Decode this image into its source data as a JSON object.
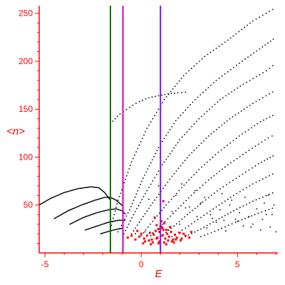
{
  "chart_data": {
    "type": "scatter",
    "title": "",
    "xlabel": "E",
    "ylabel": "<n>",
    "xlim": [
      -5.3,
      7.1
    ],
    "ylim": [
      0,
      255
    ],
    "grid": false,
    "legend": "none",
    "x_ticks": [
      -5,
      0,
      5
    ],
    "x_tick_labels": [
      "-5",
      "0",
      "5"
    ],
    "y_ticks": [
      50,
      100,
      150,
      200,
      250
    ],
    "y_tick_labels": [
      "50",
      "100",
      "150",
      "200",
      "250"
    ],
    "colors": {
      "axes": "#ff0000",
      "labels": "#ff0000",
      "points": "#000000",
      "highlight_points": "#ff0000",
      "line_green": "#007700",
      "line_magenta": "#cc00cc",
      "line_violet": "#7711ff"
    },
    "vertical_lines": [
      {
        "x": -1.6,
        "color": "#007700"
      },
      {
        "x": -0.95,
        "color": "#cc00cc"
      },
      {
        "x": 1.0,
        "color": "#7711ff"
      }
    ],
    "branches": [
      {
        "x": [
          -1.6,
          -1.2,
          -0.5,
          0.3,
          1.2,
          2.2,
          3.3,
          4.5,
          5.8,
          7.0
        ],
        "y": [
          25,
          55,
          95,
          130,
          160,
          185,
          205,
          222,
          242,
          256
        ]
      },
      {
        "x": [
          -1.2,
          -0.6,
          0.1,
          0.9,
          1.8,
          2.8,
          3.9,
          5.1,
          6.3,
          7.0
        ],
        "y": [
          22,
          45,
          78,
          110,
          138,
          160,
          180,
          198,
          215,
          225
        ]
      },
      {
        "x": [
          -0.9,
          -0.4,
          0.3,
          1.1,
          2.0,
          3.0,
          4.1,
          5.3,
          6.5,
          7.0
        ],
        "y": [
          20,
          40,
          65,
          92,
          118,
          140,
          160,
          176,
          190,
          198
        ]
      },
      {
        "x": [
          -0.5,
          0.1,
          0.8,
          1.6,
          2.5,
          3.5,
          4.6,
          5.8,
          7.0
        ],
        "y": [
          20,
          38,
          58,
          80,
          102,
          122,
          140,
          156,
          170
        ]
      },
      {
        "x": [
          0.0,
          0.6,
          1.3,
          2.1,
          3.0,
          4.0,
          5.1,
          6.2,
          7.0
        ],
        "y": [
          18,
          33,
          50,
          68,
          87,
          105,
          122,
          137,
          145
        ]
      },
      {
        "x": [
          0.5,
          1.1,
          1.8,
          2.6,
          3.5,
          4.5,
          5.6,
          6.6,
          7.0
        ],
        "y": [
          18,
          30,
          44,
          60,
          76,
          92,
          107,
          120,
          124
        ]
      },
      {
        "x": [
          1.0,
          1.7,
          2.4,
          3.2,
          4.1,
          5.1,
          6.1,
          7.0
        ],
        "y": [
          17,
          28,
          40,
          53,
          67,
          80,
          93,
          103
        ]
      },
      {
        "x": [
          1.6,
          2.3,
          3.1,
          3.9,
          4.8,
          5.8,
          7.0
        ],
        "y": [
          17,
          26,
          37,
          48,
          60,
          72,
          84
        ]
      },
      {
        "x": [
          2.3,
          3.1,
          3.9,
          4.8,
          5.8,
          7.0
        ],
        "y": [
          17,
          25,
          34,
          44,
          54,
          64
        ]
      },
      {
        "x": [
          3.1,
          4.0,
          4.9,
          5.9,
          7.0
        ],
        "y": [
          17,
          24,
          32,
          40,
          48
        ]
      }
    ],
    "left_curves": [
      {
        "x": [
          -5.3,
          -4.7,
          -4.0,
          -3.3,
          -2.6,
          -2.2,
          -1.9,
          -1.6
        ],
        "y": [
          50,
          57,
          63,
          67,
          69,
          68,
          63,
          55
        ]
      },
      {
        "x": [
          -4.5,
          -3.8,
          -3.1,
          -2.4,
          -1.9,
          -1.6,
          -1.3,
          -0.9
        ],
        "y": [
          36,
          44,
          50,
          55,
          58,
          58,
          55,
          48
        ]
      },
      {
        "x": [
          -3.7,
          -3.0,
          -2.3,
          -1.7,
          -1.3,
          -1.0,
          -0.8
        ],
        "y": [
          30,
          37,
          42,
          45,
          46,
          44,
          40
        ]
      },
      {
        "x": [
          -2.9,
          -2.3,
          -1.7,
          -1.2,
          -0.8
        ],
        "y": [
          24,
          28,
          32,
          34,
          34
        ]
      },
      {
        "x": [
          -2.1,
          -1.6,
          -1.2,
          -0.9
        ],
        "y": [
          20,
          23,
          25,
          26
        ]
      }
    ],
    "upper_curve": {
      "x": [
        -1.6,
        -1.1,
        -0.6,
        -0.1,
        0.4,
        0.9,
        1.4,
        1.9,
        2.5
      ],
      "y": [
        135,
        145,
        152,
        158,
        162,
        164,
        166,
        167,
        168
      ]
    },
    "scattered_points": {
      "x": [
        -0.3,
        0.2,
        0.6,
        1.4,
        2.0,
        2.6,
        3.4,
        3.9,
        4.4,
        4.9,
        5.3,
        5.8,
        6.2,
        6.7,
        7.0,
        1.6,
        2.3,
        2.9,
        3.6,
        4.1,
        4.6,
        5.1,
        5.6,
        6.0,
        6.5,
        2.1,
        2.8,
        3.3,
        4.2,
        4.7,
        5.4,
        6.4,
        6.9,
        0.4,
        0.9,
        1.8,
        2.5,
        3.1,
        3.7,
        4.3,
        5.0,
        5.7,
        6.3,
        6.8,
        6.6
      ],
      "y": [
        20,
        22,
        21,
        24,
        30,
        22,
        26,
        32,
        23,
        35,
        28,
        30,
        24,
        27,
        22,
        43,
        47,
        38,
        40,
        45,
        50,
        42,
        38,
        46,
        40,
        72,
        65,
        58,
        62,
        55,
        58,
        52,
        50,
        56,
        70,
        60,
        48,
        52,
        36,
        34,
        33,
        27,
        35,
        40,
        60
      ]
    },
    "highlight_points": {
      "x": [
        -0.7,
        -0.5,
        -0.3,
        -0.1,
        0.0,
        0.15,
        0.3,
        0.45,
        0.55,
        0.65,
        0.75,
        0.85,
        0.95,
        1.05,
        1.1,
        1.15,
        1.25,
        1.35,
        1.45,
        1.55,
        1.65,
        1.75,
        1.85,
        2.0,
        2.1,
        2.3,
        2.5,
        0.2,
        0.4,
        0.6,
        0.8,
        0.95,
        1.2,
        1.4,
        1.6,
        1.8,
        2.05,
        0.1,
        0.5,
        0.9,
        1.3,
        1.7,
        1.0,
        1.05,
        1.1,
        1.2,
        1.3,
        0.9,
        0.8,
        1.5,
        -0.2,
        2.2,
        2.6,
        1.15,
        0.7
      ],
      "y": [
        16,
        18,
        14,
        17,
        20,
        15,
        18,
        21,
        14,
        19,
        23,
        16,
        22,
        27,
        18,
        24,
        15,
        20,
        17,
        22,
        14,
        19,
        16,
        21,
        15,
        18,
        16,
        12,
        13,
        11,
        15,
        12,
        11,
        13,
        12,
        14,
        13,
        10,
        9,
        10,
        9,
        11,
        28,
        33,
        26,
        31,
        24,
        25,
        29,
        27,
        23,
        20,
        22,
        54,
        37
      ]
    }
  }
}
